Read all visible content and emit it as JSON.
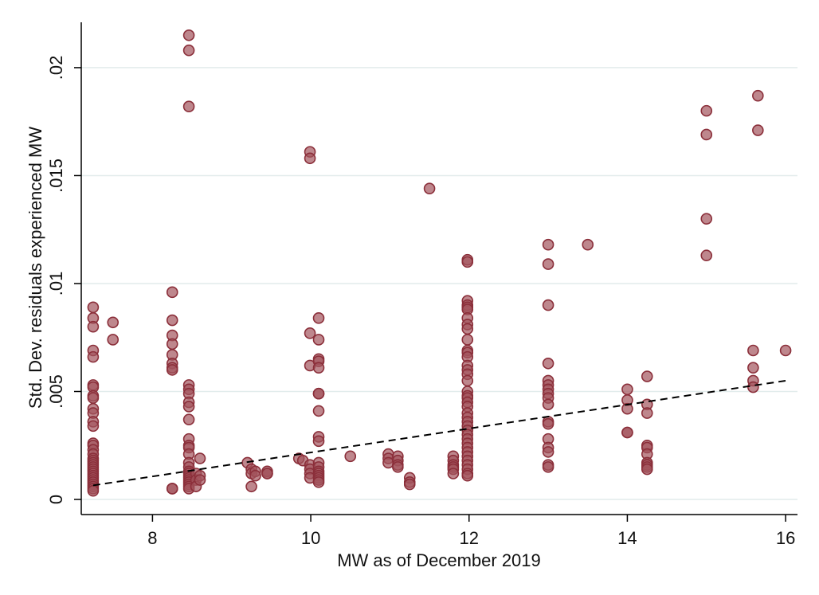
{
  "chart_data": {
    "type": "scatter",
    "title": "",
    "xlabel": "MW as of December 2019",
    "ylabel": "Std. Dev. residuals experienced MW",
    "xlim": [
      7.1,
      16.15
    ],
    "ylim": [
      -0.0007,
      0.0221
    ],
    "x_ticks": [
      8,
      10,
      12,
      14,
      16
    ],
    "x_tick_labels": [
      "8",
      "10",
      "12",
      "14",
      "16"
    ],
    "y_ticks": [
      0,
      0.005,
      0.01,
      0.015,
      0.02
    ],
    "y_tick_labels": [
      "0",
      ".005",
      ".01",
      ".015",
      ".02"
    ],
    "grid": true,
    "legend": "none",
    "colors": {
      "marker_fill": "#a2545c",
      "marker_edge": "#8b2f3a",
      "grid": "#e2ecec",
      "fit_line": "#000000"
    },
    "series": [
      {
        "marker": "circle",
        "points": [
          [
            7.25,
            0.0089
          ],
          [
            7.25,
            0.0084
          ],
          [
            7.25,
            0.008
          ],
          [
            7.25,
            0.0069
          ],
          [
            7.25,
            0.0066
          ],
          [
            7.25,
            0.0053
          ],
          [
            7.25,
            0.0052
          ],
          [
            7.25,
            0.0048
          ],
          [
            7.25,
            0.0047
          ],
          [
            7.25,
            0.0042
          ],
          [
            7.25,
            0.004
          ],
          [
            7.25,
            0.0036
          ],
          [
            7.25,
            0.0034
          ],
          [
            7.25,
            0.0026
          ],
          [
            7.25,
            0.0025
          ],
          [
            7.25,
            0.0023
          ],
          [
            7.25,
            0.0021
          ],
          [
            7.25,
            0.0019
          ],
          [
            7.25,
            0.0018
          ],
          [
            7.25,
            0.0017
          ],
          [
            7.25,
            0.0016
          ],
          [
            7.25,
            0.0015
          ],
          [
            7.25,
            0.0014
          ],
          [
            7.25,
            0.0013
          ],
          [
            7.25,
            0.0012
          ],
          [
            7.25,
            0.0011
          ],
          [
            7.25,
            0.001
          ],
          [
            7.25,
            0.0009
          ],
          [
            7.25,
            0.0008
          ],
          [
            7.25,
            0.0007
          ],
          [
            7.25,
            0.0006
          ],
          [
            7.25,
            0.0005
          ],
          [
            7.25,
            0.0004
          ],
          [
            7.5,
            0.0082
          ],
          [
            7.5,
            0.0074
          ],
          [
            8.25,
            0.0096
          ],
          [
            8.25,
            0.0083
          ],
          [
            8.25,
            0.0076
          ],
          [
            8.25,
            0.0072
          ],
          [
            8.25,
            0.0067
          ],
          [
            8.25,
            0.0063
          ],
          [
            8.25,
            0.0061
          ],
          [
            8.25,
            0.006
          ],
          [
            8.25,
            0.0005
          ],
          [
            8.25,
            0.0005
          ],
          [
            8.46,
            0.0215
          ],
          [
            8.46,
            0.0208
          ],
          [
            8.46,
            0.0182
          ],
          [
            8.46,
            0.0053
          ],
          [
            8.46,
            0.0051
          ],
          [
            8.46,
            0.0049
          ],
          [
            8.46,
            0.0045
          ],
          [
            8.46,
            0.0043
          ],
          [
            8.46,
            0.0037
          ],
          [
            8.46,
            0.0028
          ],
          [
            8.46,
            0.0025
          ],
          [
            8.46,
            0.0024
          ],
          [
            8.46,
            0.0021
          ],
          [
            8.46,
            0.0017
          ],
          [
            8.46,
            0.0015
          ],
          [
            8.46,
            0.0013
          ],
          [
            8.46,
            0.0012
          ],
          [
            8.46,
            0.0011
          ],
          [
            8.46,
            0.001
          ],
          [
            8.46,
            0.0009
          ],
          [
            8.46,
            0.0008
          ],
          [
            8.46,
            0.0007
          ],
          [
            8.46,
            0.0006
          ],
          [
            8.46,
            0.0005
          ],
          [
            8.55,
            0.0012
          ],
          [
            8.55,
            0.0009
          ],
          [
            8.55,
            0.0006
          ],
          [
            8.6,
            0.0019
          ],
          [
            8.6,
            0.0011
          ],
          [
            8.6,
            0.0009
          ],
          [
            9.2,
            0.0017
          ],
          [
            9.25,
            0.0014
          ],
          [
            9.25,
            0.0012
          ],
          [
            9.25,
            0.0006
          ],
          [
            9.3,
            0.0013
          ],
          [
            9.3,
            0.0011
          ],
          [
            9.45,
            0.0013
          ],
          [
            9.45,
            0.0012
          ],
          [
            9.45,
            0.0012
          ],
          [
            9.85,
            0.0019
          ],
          [
            9.9,
            0.0018
          ],
          [
            9.99,
            0.0161
          ],
          [
            9.99,
            0.0158
          ],
          [
            9.99,
            0.0077
          ],
          [
            9.99,
            0.0062
          ],
          [
            9.99,
            0.0016
          ],
          [
            9.99,
            0.0014
          ],
          [
            9.99,
            0.0012
          ],
          [
            9.99,
            0.001
          ],
          [
            10.1,
            0.0084
          ],
          [
            10.1,
            0.0074
          ],
          [
            10.1,
            0.0065
          ],
          [
            10.1,
            0.0064
          ],
          [
            10.1,
            0.0061
          ],
          [
            10.1,
            0.0049
          ],
          [
            10.1,
            0.0049
          ],
          [
            10.1,
            0.0041
          ],
          [
            10.1,
            0.0029
          ],
          [
            10.1,
            0.0027
          ],
          [
            10.1,
            0.0017
          ],
          [
            10.1,
            0.0015
          ],
          [
            10.1,
            0.0013
          ],
          [
            10.1,
            0.0012
          ],
          [
            10.1,
            0.0011
          ],
          [
            10.1,
            0.001
          ],
          [
            10.1,
            0.0009
          ],
          [
            10.1,
            0.0008
          ],
          [
            10.5,
            0.002
          ],
          [
            10.98,
            0.0021
          ],
          [
            10.98,
            0.0019
          ],
          [
            10.98,
            0.0017
          ],
          [
            11.1,
            0.002
          ],
          [
            11.1,
            0.0018
          ],
          [
            11.1,
            0.0016
          ],
          [
            11.1,
            0.0015
          ],
          [
            11.25,
            0.001
          ],
          [
            11.25,
            0.0008
          ],
          [
            11.25,
            0.0007
          ],
          [
            11.5,
            0.0144
          ],
          [
            11.8,
            0.002
          ],
          [
            11.8,
            0.0018
          ],
          [
            11.8,
            0.0016
          ],
          [
            11.8,
            0.0015
          ],
          [
            11.8,
            0.0014
          ],
          [
            11.8,
            0.0012
          ],
          [
            11.98,
            0.0111
          ],
          [
            11.98,
            0.011
          ],
          [
            11.98,
            0.0092
          ],
          [
            11.98,
            0.009
          ],
          [
            11.98,
            0.0089
          ],
          [
            11.98,
            0.0088
          ],
          [
            11.98,
            0.0084
          ],
          [
            11.98,
            0.0081
          ],
          [
            11.98,
            0.0079
          ],
          [
            11.98,
            0.0074
          ],
          [
            11.98,
            0.0069
          ],
          [
            11.98,
            0.0068
          ],
          [
            11.98,
            0.0066
          ],
          [
            11.98,
            0.0062
          ],
          [
            11.98,
            0.006
          ],
          [
            11.98,
            0.0058
          ],
          [
            11.98,
            0.0055
          ],
          [
            11.98,
            0.005
          ],
          [
            11.98,
            0.0048
          ],
          [
            11.98,
            0.0047
          ],
          [
            11.98,
            0.0045
          ],
          [
            11.98,
            0.0043
          ],
          [
            11.98,
            0.004
          ],
          [
            11.98,
            0.0038
          ],
          [
            11.98,
            0.0036
          ],
          [
            11.98,
            0.0034
          ],
          [
            11.98,
            0.0032
          ],
          [
            11.98,
            0.003
          ],
          [
            11.98,
            0.0028
          ],
          [
            11.98,
            0.0026
          ],
          [
            11.98,
            0.0024
          ],
          [
            11.98,
            0.0022
          ],
          [
            11.98,
            0.002
          ],
          [
            11.98,
            0.0018
          ],
          [
            11.98,
            0.0016
          ],
          [
            11.98,
            0.0014
          ],
          [
            11.98,
            0.0012
          ],
          [
            11.98,
            0.0011
          ],
          [
            13.0,
            0.0118
          ],
          [
            13.0,
            0.0109
          ],
          [
            13.0,
            0.009
          ],
          [
            13.0,
            0.0063
          ],
          [
            13.0,
            0.0055
          ],
          [
            13.0,
            0.0053
          ],
          [
            13.0,
            0.0051
          ],
          [
            13.0,
            0.0049
          ],
          [
            13.0,
            0.0047
          ],
          [
            13.0,
            0.0044
          ],
          [
            13.0,
            0.0036
          ],
          [
            13.0,
            0.0035
          ],
          [
            13.0,
            0.0028
          ],
          [
            13.0,
            0.0024
          ],
          [
            13.0,
            0.0022
          ],
          [
            13.0,
            0.0016
          ],
          [
            13.0,
            0.0015
          ],
          [
            13.5,
            0.0118
          ],
          [
            14.0,
            0.0051
          ],
          [
            14.0,
            0.0046
          ],
          [
            14.0,
            0.0042
          ],
          [
            14.0,
            0.0031
          ],
          [
            14.0,
            0.0031
          ],
          [
            14.25,
            0.0057
          ],
          [
            14.25,
            0.0044
          ],
          [
            14.25,
            0.004
          ],
          [
            14.25,
            0.0025
          ],
          [
            14.25,
            0.0024
          ],
          [
            14.25,
            0.0021
          ],
          [
            14.25,
            0.0017
          ],
          [
            14.25,
            0.0016
          ],
          [
            14.25,
            0.0015
          ],
          [
            14.25,
            0.0014
          ],
          [
            15.0,
            0.018
          ],
          [
            15.0,
            0.0169
          ],
          [
            15.0,
            0.013
          ],
          [
            15.0,
            0.0113
          ],
          [
            15.59,
            0.0069
          ],
          [
            15.59,
            0.0061
          ],
          [
            15.59,
            0.0055
          ],
          [
            15.59,
            0.0052
          ],
          [
            15.65,
            0.0187
          ],
          [
            15.65,
            0.0171
          ],
          [
            16.0,
            0.0069
          ]
        ]
      }
    ],
    "fit_line": {
      "x": [
        7.25,
        16.0
      ],
      "y": [
        0.00065,
        0.0055
      ]
    }
  }
}
